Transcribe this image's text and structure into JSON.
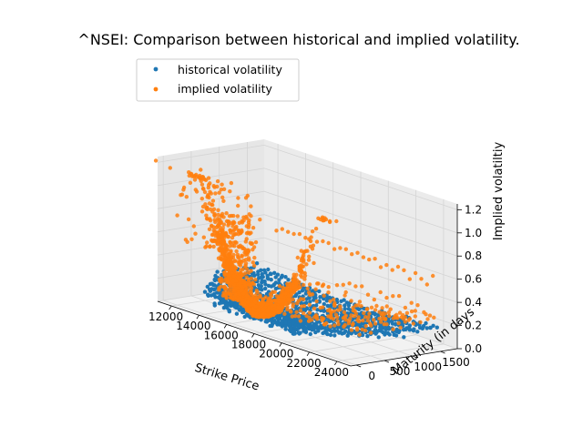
{
  "chart_data": {
    "type": "scatter",
    "projection": "3d",
    "title": "^NSEI: Comparison between historical and implied volatility.",
    "xlabel": "Strike Price",
    "ylabel": "Maturity (in days",
    "zlabel": "Implied volatiltiy",
    "xlim": [
      11000,
      25000
    ],
    "ylim": [
      -100,
      1800
    ],
    "zlim": [
      0,
      1.25
    ],
    "xticks": [
      "12000",
      "14000",
      "16000",
      "18000",
      "20000",
      "22000",
      "24000"
    ],
    "yticks": [
      "0",
      "500",
      "1000",
      "1500"
    ],
    "zticks": [
      "0.0",
      "0.2",
      "0.4",
      "0.6",
      "0.8",
      "1.0",
      "1.2"
    ],
    "grid": true,
    "legend": "upper-left",
    "series": [
      {
        "name": "historical volatility",
        "color": "#1f77b4"
      },
      {
        "name": "implied volatility",
        "color": "#ff7f0e"
      }
    ]
  }
}
